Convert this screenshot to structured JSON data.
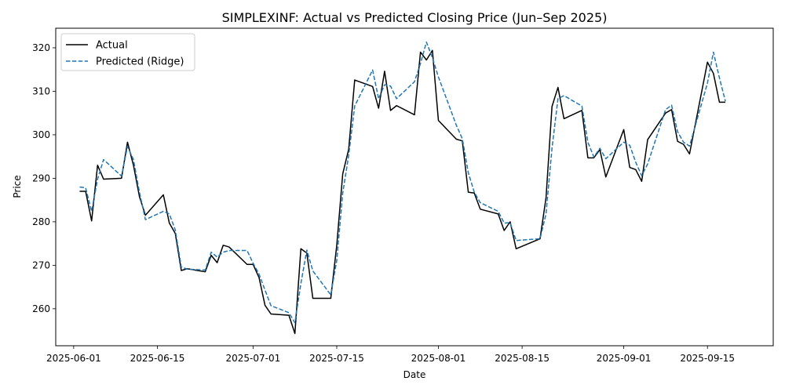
{
  "chart_data": {
    "type": "line",
    "title": "SIMPLEXINF: Actual vs Predicted Closing Price (Jun–Sep 2025)",
    "xlabel": "Date",
    "ylabel": "Price",
    "x_ticks": [
      "2025-06-01",
      "2025-06-15",
      "2025-07-01",
      "2025-07-15",
      "2025-08-01",
      "2025-08-15",
      "2025-09-01",
      "2025-09-15"
    ],
    "y_ticks": [
      260,
      270,
      280,
      290,
      300,
      310,
      320
    ],
    "xlim": [
      "2025-05-29",
      "2025-09-26"
    ],
    "ylim": [
      251.5,
      324.5
    ],
    "legend_position": "top-left",
    "grid": false,
    "series": [
      {
        "name": "Actual",
        "color": "#000000",
        "style": "solid",
        "points": [
          [
            "2025-06-02",
            287
          ],
          [
            "2025-06-03",
            287
          ],
          [
            "2025-06-04",
            280.2
          ],
          [
            "2025-06-05",
            293
          ],
          [
            "2025-06-06",
            289.8
          ],
          [
            "2025-06-09",
            290
          ],
          [
            "2025-06-10",
            298.3
          ],
          [
            "2025-06-11",
            293
          ],
          [
            "2025-06-12",
            285.8
          ],
          [
            "2025-06-13",
            281.5
          ],
          [
            "2025-06-16",
            286.2
          ],
          [
            "2025-06-17",
            279.7
          ],
          [
            "2025-06-18",
            277.3
          ],
          [
            "2025-06-19",
            268.8
          ],
          [
            "2025-06-20",
            269.2
          ],
          [
            "2025-06-23",
            268.5
          ],
          [
            "2025-06-24",
            272.3
          ],
          [
            "2025-06-25",
            270.6
          ],
          [
            "2025-06-26",
            274.6
          ],
          [
            "2025-06-27",
            274.2
          ],
          [
            "2025-06-30",
            270.2
          ],
          [
            "2025-07-01",
            270.2
          ],
          [
            "2025-07-02",
            267.2
          ],
          [
            "2025-07-03",
            260.8
          ],
          [
            "2025-07-04",
            258.8
          ],
          [
            "2025-07-07",
            258.5
          ],
          [
            "2025-07-08",
            254.3
          ],
          [
            "2025-07-09",
            273.8
          ],
          [
            "2025-07-10",
            272.8
          ],
          [
            "2025-07-11",
            262.4
          ],
          [
            "2025-07-14",
            262.4
          ],
          [
            "2025-07-15",
            274.6
          ],
          [
            "2025-07-16",
            291
          ],
          [
            "2025-07-17",
            296.7
          ],
          [
            "2025-07-18",
            312.6
          ],
          [
            "2025-07-21",
            311.1
          ],
          [
            "2025-07-22",
            306.1
          ],
          [
            "2025-07-23",
            314.6
          ],
          [
            "2025-07-24",
            305.6
          ],
          [
            "2025-07-25",
            306.7
          ],
          [
            "2025-07-28",
            304.6
          ],
          [
            "2025-07-29",
            319
          ],
          [
            "2025-07-30",
            317.2
          ],
          [
            "2025-07-31",
            319.4
          ],
          [
            "2025-08-01",
            303.3
          ],
          [
            "2025-08-04",
            299
          ],
          [
            "2025-08-05",
            298.6
          ],
          [
            "2025-08-06",
            286.8
          ],
          [
            "2025-08-07",
            286.6
          ],
          [
            "2025-08-08",
            282.9
          ],
          [
            "2025-08-11",
            281.8
          ],
          [
            "2025-08-12",
            278
          ],
          [
            "2025-08-13",
            280
          ],
          [
            "2025-08-14",
            273.8
          ],
          [
            "2025-08-18",
            276.1
          ],
          [
            "2025-08-19",
            285.5
          ],
          [
            "2025-08-20",
            306.5
          ],
          [
            "2025-08-21",
            310.9
          ],
          [
            "2025-08-22",
            303.7
          ],
          [
            "2025-08-25",
            305.6
          ],
          [
            "2025-08-26",
            294.7
          ],
          [
            "2025-08-27",
            294.7
          ],
          [
            "2025-08-28",
            296.6
          ],
          [
            "2025-08-29",
            290.3
          ],
          [
            "2025-09-01",
            301.2
          ],
          [
            "2025-09-02",
            292.5
          ],
          [
            "2025-09-03",
            292
          ],
          [
            "2025-09-04",
            289.3
          ],
          [
            "2025-09-05",
            298.9
          ],
          [
            "2025-09-08",
            305
          ],
          [
            "2025-09-09",
            305.8
          ],
          [
            "2025-09-10",
            298.5
          ],
          [
            "2025-09-11",
            297.8
          ],
          [
            "2025-09-12",
            295.6
          ],
          [
            "2025-09-15",
            316.7
          ],
          [
            "2025-09-16",
            314.1
          ],
          [
            "2025-09-17",
            307.5
          ],
          [
            "2025-09-18",
            307.5
          ]
        ]
      },
      {
        "name": "Predicted (Ridge)",
        "color": "#1f77b4",
        "style": "dashed",
        "points": [
          [
            "2025-06-02",
            288
          ],
          [
            "2025-06-03",
            287.8
          ],
          [
            "2025-06-04",
            282.4
          ],
          [
            "2025-06-05",
            289.8
          ],
          [
            "2025-06-06",
            294.3
          ],
          [
            "2025-06-09",
            290.5
          ],
          [
            "2025-06-10",
            297.3
          ],
          [
            "2025-06-11",
            294.3
          ],
          [
            "2025-06-12",
            286.8
          ],
          [
            "2025-06-13",
            280.5
          ],
          [
            "2025-06-16",
            282.4
          ],
          [
            "2025-06-17",
            281.8
          ],
          [
            "2025-06-18",
            278.1
          ],
          [
            "2025-06-19",
            269.6
          ],
          [
            "2025-06-20",
            269.1
          ],
          [
            "2025-06-23",
            268.9
          ],
          [
            "2025-06-24",
            273
          ],
          [
            "2025-06-25",
            271.9
          ],
          [
            "2025-06-26",
            273
          ],
          [
            "2025-06-27",
            273.4
          ],
          [
            "2025-06-30",
            273.4
          ],
          [
            "2025-07-01",
            270.5
          ],
          [
            "2025-07-02",
            268
          ],
          [
            "2025-07-03",
            264.3
          ],
          [
            "2025-07-04",
            260.7
          ],
          [
            "2025-07-07",
            259.1
          ],
          [
            "2025-07-08",
            256.8
          ],
          [
            "2025-07-09",
            265.8
          ],
          [
            "2025-07-10",
            273.5
          ],
          [
            "2025-07-11",
            268.7
          ],
          [
            "2025-07-14",
            263.2
          ],
          [
            "2025-07-15",
            271.1
          ],
          [
            "2025-07-16",
            286.6
          ],
          [
            "2025-07-17",
            295.3
          ],
          [
            "2025-07-18",
            306.6
          ],
          [
            "2025-07-21",
            314.9
          ],
          [
            "2025-07-22",
            308.3
          ],
          [
            "2025-07-23",
            311.5
          ],
          [
            "2025-07-24",
            311.2
          ],
          [
            "2025-07-25",
            308.3
          ],
          [
            "2025-07-28",
            312.2
          ],
          [
            "2025-07-29",
            316.4
          ],
          [
            "2025-07-30",
            321.3
          ],
          [
            "2025-07-31",
            317.7
          ],
          [
            "2025-08-01",
            313.3
          ],
          [
            "2025-08-04",
            302.2
          ],
          [
            "2025-08-05",
            299.1
          ],
          [
            "2025-08-06",
            291.3
          ],
          [
            "2025-08-07",
            286.8
          ],
          [
            "2025-08-08",
            284.4
          ],
          [
            "2025-08-11",
            282.4
          ],
          [
            "2025-08-12",
            279.7
          ],
          [
            "2025-08-13",
            279.8
          ],
          [
            "2025-08-14",
            275.7
          ],
          [
            "2025-08-18",
            276.1
          ],
          [
            "2025-08-19",
            281.8
          ],
          [
            "2025-08-20",
            296.9
          ],
          [
            "2025-08-21",
            308.3
          ],
          [
            "2025-08-22",
            309
          ],
          [
            "2025-08-25",
            306.6
          ],
          [
            "2025-08-26",
            298.3
          ],
          [
            "2025-08-27",
            294.9
          ],
          [
            "2025-08-28",
            296.9
          ],
          [
            "2025-08-29",
            294.5
          ],
          [
            "2025-09-01",
            298.3
          ],
          [
            "2025-09-02",
            297.6
          ],
          [
            "2025-09-03",
            293.7
          ],
          [
            "2025-09-04",
            290.6
          ],
          [
            "2025-09-05",
            293.3
          ],
          [
            "2025-09-08",
            305.8
          ],
          [
            "2025-09-09",
            306.8
          ],
          [
            "2025-09-10",
            300.7
          ],
          [
            "2025-09-11",
            298.3
          ],
          [
            "2025-09-12",
            297.4
          ],
          [
            "2025-09-15",
            311.9
          ],
          [
            "2025-09-16",
            319
          ],
          [
            "2025-09-17",
            313.1
          ],
          [
            "2025-09-18",
            307.7
          ]
        ]
      }
    ]
  }
}
